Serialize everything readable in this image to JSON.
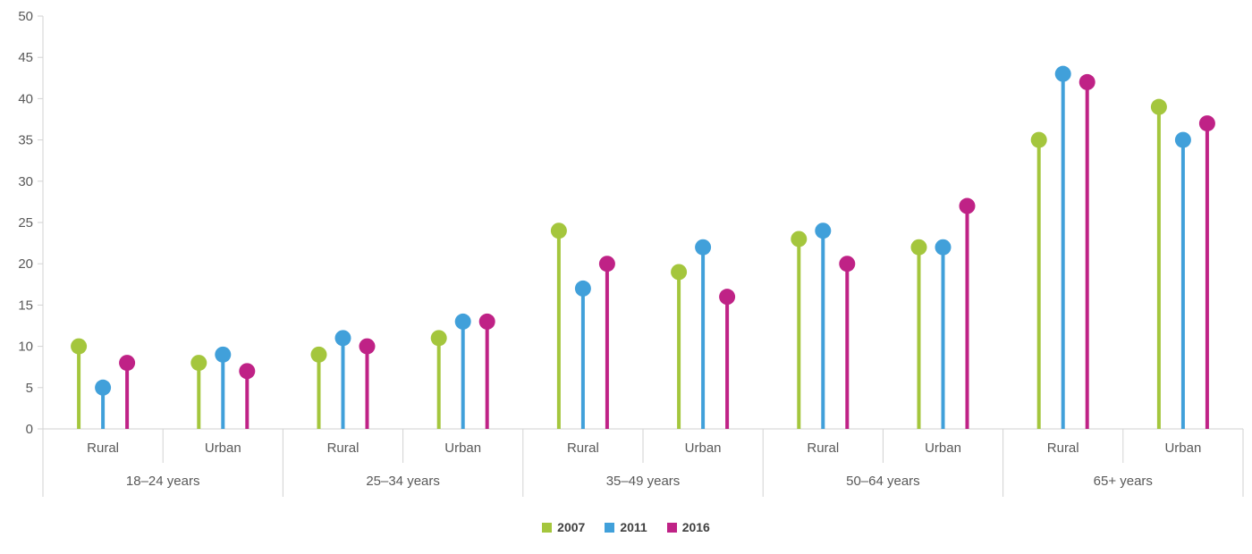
{
  "chart_data": {
    "type": "lollipop",
    "title": "",
    "xlabel": "",
    "ylabel": "",
    "ylim": [
      0,
      50
    ],
    "yticks": [
      0,
      5,
      10,
      15,
      20,
      25,
      30,
      35,
      40,
      45,
      50
    ],
    "grid": false,
    "legend_position": "bottom",
    "groups": [
      "18–24 years",
      "25–34 years",
      "35–49 years",
      "50–64 years",
      "65+ years"
    ],
    "subgroups": [
      "Rural",
      "Urban"
    ],
    "series": [
      {
        "name": "2007",
        "color": "#a4c63d",
        "values": [
          [
            10,
            8
          ],
          [
            9,
            11
          ],
          [
            24,
            19
          ],
          [
            23,
            22
          ],
          [
            35,
            39
          ]
        ]
      },
      {
        "name": "2011",
        "color": "#41a0da",
        "values": [
          [
            5,
            9
          ],
          [
            11,
            13
          ],
          [
            17,
            22
          ],
          [
            24,
            22
          ],
          [
            43,
            35
          ]
        ]
      },
      {
        "name": "2016",
        "color": "#bf2286",
        "values": [
          [
            8,
            7
          ],
          [
            10,
            13
          ],
          [
            20,
            16
          ],
          [
            20,
            27
          ],
          [
            42,
            37
          ]
        ]
      }
    ],
    "legend": [
      "2007",
      "2011",
      "2016"
    ]
  },
  "style": {
    "axis_color": "#d2d2d2",
    "label_color": "#595959",
    "legend_text_color": "#404040",
    "background": "#ffffff"
  }
}
